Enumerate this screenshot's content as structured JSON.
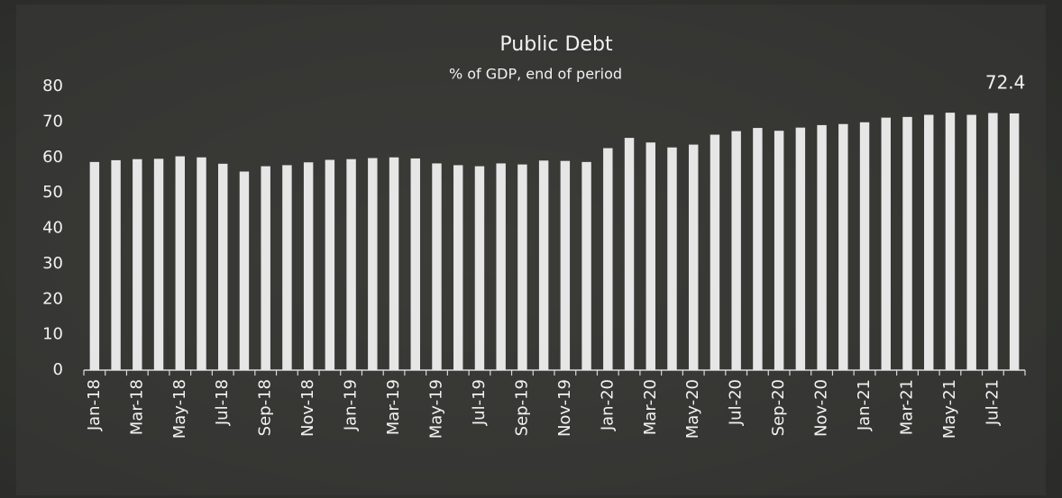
{
  "chart_data": {
    "type": "bar",
    "title": "Public Debt",
    "subtitle": "% of GDP, end of period",
    "categories": [
      "Jan-18",
      null,
      "Mar-18",
      null,
      "May-18",
      null,
      "Jul-18",
      null,
      "Sep-18",
      null,
      "Nov-18",
      null,
      "Jan-19",
      null,
      "Mar-19",
      null,
      "May-19",
      null,
      "Jul-19",
      null,
      "Sep-19",
      null,
      "Nov-19",
      null,
      "Jan-20",
      null,
      "Mar-20",
      null,
      "May-20",
      null,
      "Jul-20",
      null,
      "Sep-20",
      null,
      "Nov-20",
      null,
      "Jan-21",
      null,
      "Mar-21",
      null,
      "May-21",
      null,
      "Jul-21",
      null
    ],
    "values": [
      58.7,
      59.2,
      59.5,
      59.6,
      60.3,
      60.0,
      58.2,
      56.0,
      57.5,
      57.8,
      58.6,
      59.3,
      59.5,
      59.8,
      60.0,
      59.7,
      58.3,
      57.8,
      57.5,
      58.3,
      58.0,
      59.1,
      59.0,
      58.7,
      62.6,
      65.5,
      64.2,
      62.8,
      63.6,
      66.4,
      67.4,
      68.3,
      67.5,
      68.4,
      69.1,
      69.4,
      69.9,
      71.2,
      71.4,
      72.0,
      72.6,
      72.0,
      72.5,
      72.4
    ],
    "value_labels": [
      null,
      null,
      null,
      null,
      null,
      null,
      null,
      null,
      null,
      null,
      null,
      null,
      null,
      null,
      null,
      null,
      null,
      null,
      null,
      null,
      null,
      null,
      null,
      null,
      null,
      null,
      null,
      null,
      null,
      null,
      null,
      null,
      null,
      null,
      null,
      null,
      null,
      null,
      null,
      null,
      null,
      null,
      null,
      "72.4"
    ],
    "color": "#e6e6e6",
    "ylim": [
      0,
      80
    ],
    "yticks": [
      0,
      10,
      20,
      30,
      40,
      50,
      60,
      70,
      80
    ],
    "grid": false
  }
}
